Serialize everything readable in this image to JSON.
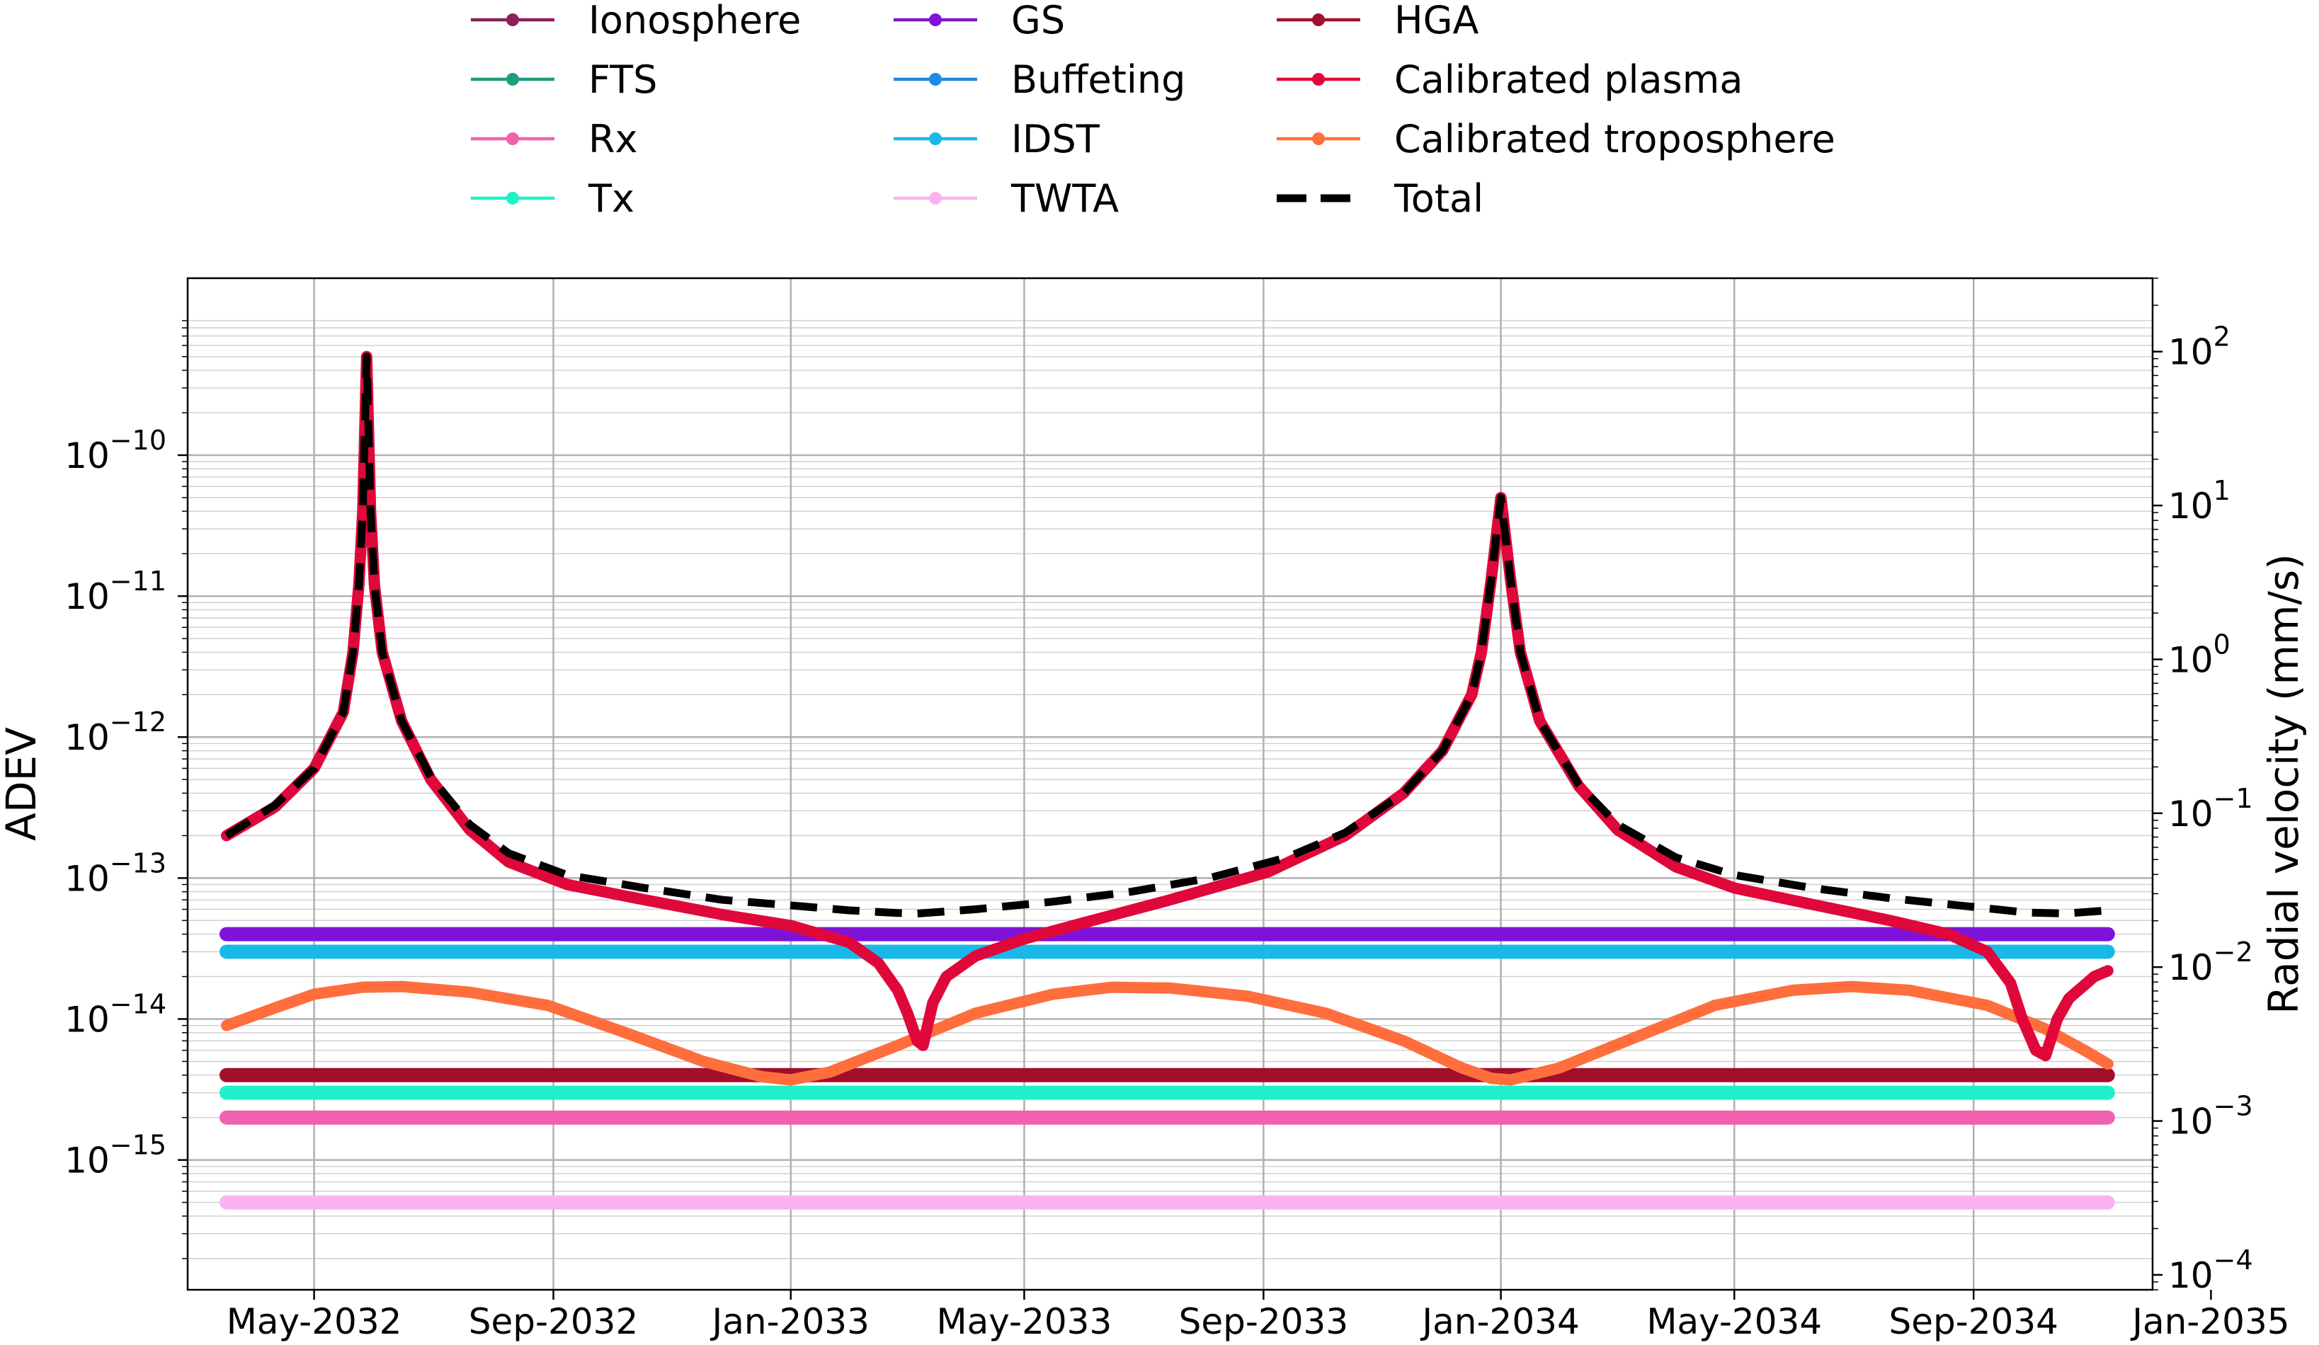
{
  "chart_data": {
    "type": "line",
    "title": "",
    "xlabel": "",
    "ylabel_left": "ADEV",
    "ylabel_right": "Radial velocity (mm/s)",
    "yscale": "log",
    "ylim_left": [
      1.2e-16,
      1.8e-09
    ],
    "ylim_right": [
      8e-05,
      300
    ],
    "grid": true,
    "legend_placement": "top, outside",
    "x_range_days": [
      -65,
      945
    ],
    "x_ticks": [
      {
        "day": 0,
        "label": "May-2032"
      },
      {
        "day": 123,
        "label": "Sep-2032"
      },
      {
        "day": 245,
        "label": "Jan-2033"
      },
      {
        "day": 365,
        "label": "May-2033"
      },
      {
        "day": 488,
        "label": "Sep-2033"
      },
      {
        "day": 610,
        "label": "Jan-2034"
      },
      {
        "day": 730,
        "label": "May-2034"
      },
      {
        "day": 853,
        "label": "Sep-2034"
      },
      {
        "day": 975,
        "label": "Jan-2035"
      }
    ],
    "y_ticks_left": [
      {
        "value": 1e-15,
        "base": "10",
        "exp": "−15"
      },
      {
        "value": 1e-14,
        "base": "10",
        "exp": "−14"
      },
      {
        "value": 1e-13,
        "base": "10",
        "exp": "−13"
      },
      {
        "value": 1e-12,
        "base": "10",
        "exp": "−12"
      },
      {
        "value": 1e-11,
        "base": "10",
        "exp": "−11"
      },
      {
        "value": 1e-10,
        "base": "10",
        "exp": "−10"
      }
    ],
    "y_ticks_right": [
      {
        "value": 0.0001,
        "base": "10",
        "exp": "−4"
      },
      {
        "value": 0.001,
        "base": "10",
        "exp": "−3"
      },
      {
        "value": 0.01,
        "base": "10",
        "exp": "−2"
      },
      {
        "value": 0.1,
        "base": "10",
        "exp": "−1"
      },
      {
        "value": 1,
        "base": "10",
        "exp": "0"
      },
      {
        "value": 10,
        "base": "10",
        "exp": "1"
      },
      {
        "value": 100,
        "base": "10",
        "exp": "2"
      }
    ],
    "series": [
      {
        "name": "Ionosphere",
        "color": "#8e1f5a",
        "kind": "constant",
        "value": null,
        "in_legend": true
      },
      {
        "name": "FTS",
        "color": "#1f9e7f",
        "kind": "constant",
        "value": null,
        "in_legend": true
      },
      {
        "name": "Rx",
        "color": "#f062b0",
        "kind": "constant",
        "value": 2e-15,
        "in_legend": true
      },
      {
        "name": "Tx",
        "color": "#1ff2c8",
        "kind": "constant",
        "value": 3e-15,
        "in_legend": true
      },
      {
        "name": "GS",
        "color": "#7f12d8",
        "kind": "constant",
        "value": 4e-14,
        "in_legend": true
      },
      {
        "name": "Buffeting",
        "color": "#1c8ae6",
        "kind": "constant",
        "value": null,
        "in_legend": true
      },
      {
        "name": "IDST",
        "color": "#18b9ea",
        "kind": "constant",
        "value": 3e-14,
        "in_legend": true
      },
      {
        "name": "TWTA",
        "color": "#fcb1f2",
        "kind": "constant",
        "value": 5e-16,
        "in_legend": true
      },
      {
        "name": "HGA",
        "color": "#a10f2b",
        "kind": "constant",
        "value": 4e-15,
        "in_legend": true
      },
      {
        "name": "Calibrated plasma",
        "color": "#e0083a",
        "kind": "series",
        "in_legend": true,
        "points": [
          [
            -45,
            2e-13
          ],
          [
            -20,
            3.2e-13
          ],
          [
            0,
            6e-13
          ],
          [
            15,
            1.5e-12
          ],
          [
            20,
            4e-12
          ],
          [
            23,
            1.2e-11
          ],
          [
            25,
            4e-11
          ],
          [
            27,
            5e-10
          ],
          [
            29,
            4e-11
          ],
          [
            31,
            1.2e-11
          ],
          [
            35,
            4e-12
          ],
          [
            45,
            1.3e-12
          ],
          [
            60,
            5e-13
          ],
          [
            80,
            2.2e-13
          ],
          [
            100,
            1.3e-13
          ],
          [
            130,
            9e-14
          ],
          [
            170,
            7e-14
          ],
          [
            210,
            5.5e-14
          ],
          [
            245,
            4.6e-14
          ],
          [
            275,
            3.5e-14
          ],
          [
            290,
            2.5e-14
          ],
          [
            300,
            1.6e-14
          ],
          [
            305,
            1.1e-14
          ],
          [
            310,
            7e-15
          ],
          [
            313,
            6.5e-15
          ],
          [
            318,
            1.3e-14
          ],
          [
            325,
            2e-14
          ],
          [
            340,
            2.8e-14
          ],
          [
            365,
            3.7e-14
          ],
          [
            400,
            5e-14
          ],
          [
            440,
            7e-14
          ],
          [
            490,
            1.1e-13
          ],
          [
            530,
            2e-13
          ],
          [
            560,
            4e-13
          ],
          [
            580,
            8e-13
          ],
          [
            595,
            2e-12
          ],
          [
            600,
            4e-12
          ],
          [
            605,
            1.3e-11
          ],
          [
            610,
            5e-11
          ],
          [
            615,
            1.3e-11
          ],
          [
            620,
            4e-12
          ],
          [
            630,
            1.3e-12
          ],
          [
            650,
            4.5e-13
          ],
          [
            670,
            2.2e-13
          ],
          [
            700,
            1.2e-13
          ],
          [
            730,
            8.5e-14
          ],
          [
            770,
            6.5e-14
          ],
          [
            810,
            5e-14
          ],
          [
            840,
            4e-14
          ],
          [
            860,
            3e-14
          ],
          [
            872,
            1.8e-14
          ],
          [
            878,
            1e-14
          ],
          [
            885,
            6e-15
          ],
          [
            890,
            5.5e-15
          ],
          [
            896,
            1e-14
          ],
          [
            902,
            1.4e-14
          ],
          [
            915,
            2e-14
          ],
          [
            922,
            2.2e-14
          ]
        ]
      },
      {
        "name": "Calibrated troposphere",
        "color": "#ff6e3c",
        "kind": "series",
        "in_legend": true,
        "points": [
          [
            -45,
            9e-15
          ],
          [
            -20,
            1.2e-14
          ],
          [
            0,
            1.5e-14
          ],
          [
            25,
            1.68e-14
          ],
          [
            45,
            1.7e-14
          ],
          [
            80,
            1.55e-14
          ],
          [
            120,
            1.25e-14
          ],
          [
            160,
            8e-15
          ],
          [
            200,
            5e-15
          ],
          [
            230,
            3.9e-15
          ],
          [
            245,
            3.7e-15
          ],
          [
            265,
            4.2e-15
          ],
          [
            300,
            6.5e-15
          ],
          [
            340,
            1.1e-14
          ],
          [
            380,
            1.5e-14
          ],
          [
            410,
            1.68e-14
          ],
          [
            440,
            1.66e-14
          ],
          [
            480,
            1.45e-14
          ],
          [
            520,
            1.1e-14
          ],
          [
            560,
            7e-15
          ],
          [
            590,
            4.5e-15
          ],
          [
            605,
            3.8e-15
          ],
          [
            615,
            3.7e-15
          ],
          [
            640,
            4.5e-15
          ],
          [
            680,
            7.5e-15
          ],
          [
            720,
            1.25e-14
          ],
          [
            760,
            1.6e-14
          ],
          [
            790,
            1.7e-14
          ],
          [
            820,
            1.6e-14
          ],
          [
            860,
            1.25e-14
          ],
          [
            890,
            8.5e-15
          ],
          [
            910,
            6e-15
          ],
          [
            922,
            4.8e-15
          ]
        ]
      },
      {
        "name": "Total",
        "color": "#000000",
        "kind": "series",
        "dashed": true,
        "in_legend": true,
        "points": [
          [
            -45,
            2e-13
          ],
          [
            -20,
            3.3e-13
          ],
          [
            0,
            6e-13
          ],
          [
            15,
            1.5e-12
          ],
          [
            20,
            4e-12
          ],
          [
            23,
            1.2e-11
          ],
          [
            25,
            4e-11
          ],
          [
            27,
            5e-10
          ],
          [
            29,
            4e-11
          ],
          [
            31,
            1.2e-11
          ],
          [
            35,
            4e-12
          ],
          [
            45,
            1.3e-12
          ],
          [
            60,
            5.2e-13
          ],
          [
            80,
            2.4e-13
          ],
          [
            100,
            1.5e-13
          ],
          [
            130,
            1.05e-13
          ],
          [
            170,
            8.5e-14
          ],
          [
            210,
            7e-14
          ],
          [
            245,
            6.4e-14
          ],
          [
            275,
            5.9e-14
          ],
          [
            300,
            5.65e-14
          ],
          [
            310,
            5.6e-14
          ],
          [
            340,
            6e-14
          ],
          [
            380,
            6.8e-14
          ],
          [
            420,
            8e-14
          ],
          [
            460,
            1e-13
          ],
          [
            500,
            1.4e-13
          ],
          [
            530,
            2.1e-13
          ],
          [
            560,
            4e-13
          ],
          [
            580,
            8e-13
          ],
          [
            595,
            2e-12
          ],
          [
            600,
            4e-12
          ],
          [
            605,
            1.3e-11
          ],
          [
            610,
            5e-11
          ],
          [
            615,
            1.3e-11
          ],
          [
            620,
            4e-12
          ],
          [
            630,
            1.3e-12
          ],
          [
            650,
            4.6e-13
          ],
          [
            670,
            2.4e-13
          ],
          [
            700,
            1.4e-13
          ],
          [
            730,
            1.05e-13
          ],
          [
            770,
            8.5e-14
          ],
          [
            810,
            7.2e-14
          ],
          [
            850,
            6.3e-14
          ],
          [
            880,
            5.7e-14
          ],
          [
            900,
            5.6e-14
          ],
          [
            915,
            5.8e-14
          ],
          [
            922,
            5.9e-14
          ]
        ]
      }
    ]
  }
}
